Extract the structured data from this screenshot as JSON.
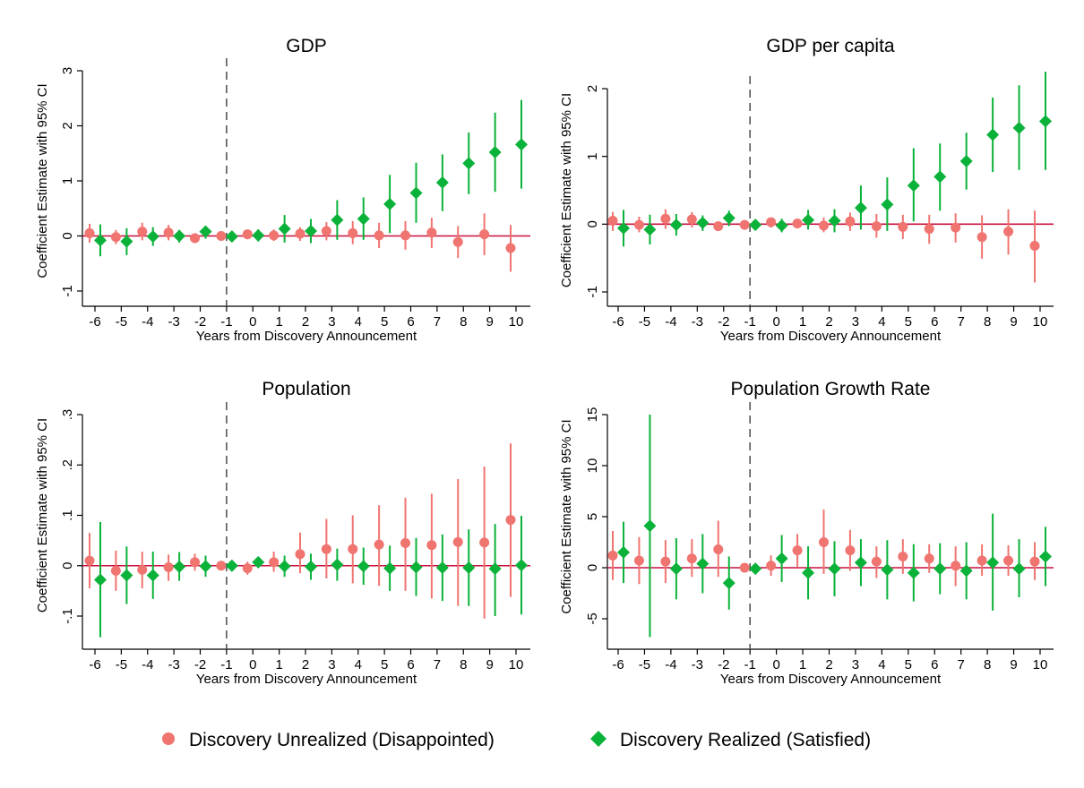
{
  "colors": {
    "unrealized": "#F07470",
    "realized": "#0BB23A",
    "zero_line": "#C8103E",
    "ref_line": "#555555",
    "axis": "#000000"
  },
  "legend": {
    "items": [
      {
        "label": "Discovery Unrealized (Disappointed)",
        "marker": "circle",
        "color": "#F07470"
      },
      {
        "label": "Discovery Realized (Satisfied)",
        "marker": "diamond",
        "color": "#0BB23A"
      }
    ]
  },
  "chart_data": [
    {
      "type": "scatter",
      "title": "GDP",
      "xlabel": "Years from Discovery Announcement",
      "ylabel": "Coefficient Estimate with 95% CI",
      "x_ticks": [
        -6,
        -5,
        -4,
        -3,
        -2,
        -1,
        0,
        1,
        2,
        3,
        4,
        5,
        6,
        7,
        8,
        9,
        10
      ],
      "y_ticks": [
        -1,
        0,
        1,
        2,
        3
      ],
      "y_tick_labels": [
        "-1",
        "0",
        "1",
        "2",
        "3"
      ],
      "ylim": [
        -1.25,
        3.0
      ],
      "reference_x": -1,
      "zero_line": 0,
      "series": [
        {
          "name": "Discovery Unrealized (Disappointed)",
          "marker": "circle",
          "x": [
            -6,
            -5,
            -4,
            -3,
            -2,
            -1,
            0,
            1,
            2,
            3,
            4,
            5,
            6,
            7,
            8,
            9,
            10
          ],
          "y": [
            0.05,
            -0.02,
            0.08,
            0.06,
            -0.04,
            0,
            0.03,
            0.01,
            0.04,
            0.09,
            0.05,
            0.01,
            0.01,
            0.06,
            -0.11,
            0.03,
            -0.22
          ],
          "ci_low": [
            -0.12,
            -0.15,
            -0.08,
            -0.08,
            -0.12,
            0,
            -0.06,
            -0.09,
            -0.09,
            -0.08,
            -0.15,
            -0.22,
            -0.25,
            -0.22,
            -0.4,
            -0.35,
            -0.65
          ],
          "ci_high": [
            0.22,
            0.11,
            0.24,
            0.2,
            0.05,
            0,
            0.1,
            0.12,
            0.16,
            0.25,
            0.27,
            0.24,
            0.27,
            0.33,
            0.18,
            0.41,
            0.2
          ]
        },
        {
          "name": "Discovery Realized (Satisfied)",
          "marker": "diamond",
          "x": [
            -6,
            -5,
            -4,
            -3,
            -2,
            -1,
            0,
            1,
            2,
            3,
            4,
            5,
            6,
            7,
            8,
            9,
            10
          ],
          "y": [
            -0.08,
            -0.1,
            -0.01,
            0.0,
            0.08,
            -0.01,
            0.01,
            0.13,
            0.09,
            0.29,
            0.31,
            0.58,
            0.78,
            0.97,
            1.32,
            1.52,
            1.66
          ],
          "ci_low": [
            -0.37,
            -0.35,
            -0.18,
            -0.12,
            -0.05,
            -0.08,
            -0.1,
            -0.12,
            -0.13,
            -0.07,
            -0.07,
            0.05,
            0.24,
            0.45,
            0.76,
            0.8,
            0.86
          ],
          "ci_high": [
            0.21,
            0.14,
            0.16,
            0.11,
            0.18,
            0.06,
            0.12,
            0.38,
            0.31,
            0.65,
            0.7,
            1.11,
            1.33,
            1.48,
            1.88,
            2.24,
            2.47
          ]
        }
      ]
    },
    {
      "type": "scatter",
      "title": "GDP per capita",
      "xlabel": "Years from Discovery Announcement",
      "ylabel": "Coefficient Estimate with 95% CI",
      "x_ticks": [
        -6,
        -5,
        -4,
        -3,
        -2,
        -1,
        0,
        1,
        2,
        3,
        4,
        5,
        6,
        7,
        8,
        9,
        10
      ],
      "y_ticks": [
        -1,
        0,
        1,
        2
      ],
      "y_tick_labels": [
        "-1",
        "0",
        "1",
        "2"
      ],
      "ylim": [
        -1.2,
        2.3
      ],
      "reference_x": -1,
      "zero_line": 0,
      "series": [
        {
          "name": "Discovery Unrealized (Disappointed)",
          "marker": "circle",
          "x": [
            -6,
            -5,
            -4,
            -3,
            -2,
            -1,
            0,
            1,
            2,
            3,
            4,
            5,
            6,
            7,
            8,
            9,
            10
          ],
          "y": [
            0.05,
            -0.01,
            0.08,
            0.07,
            -0.03,
            -0.01,
            0.03,
            0.01,
            -0.02,
            0.04,
            -0.03,
            -0.04,
            -0.07,
            -0.05,
            -0.19,
            -0.11,
            -0.32
          ],
          "ci_low": [
            -0.1,
            -0.12,
            -0.07,
            -0.05,
            -0.1,
            -0.05,
            -0.05,
            -0.06,
            -0.12,
            -0.1,
            -0.2,
            -0.22,
            -0.29,
            -0.27,
            -0.51,
            -0.45,
            -0.86
          ],
          "ci_high": [
            0.18,
            0.11,
            0.22,
            0.18,
            0.04,
            0.03,
            0.08,
            0.08,
            0.1,
            0.17,
            0.15,
            0.14,
            0.14,
            0.16,
            0.13,
            0.22,
            0.2
          ]
        },
        {
          "name": "Discovery Realized (Satisfied)",
          "marker": "diamond",
          "x": [
            -6,
            -5,
            -4,
            -3,
            -2,
            -1,
            0,
            1,
            2,
            3,
            4,
            5,
            6,
            7,
            8,
            9,
            10
          ],
          "y": [
            -0.06,
            -0.08,
            -0.01,
            0.02,
            0.09,
            -0.01,
            -0.02,
            0.06,
            0.05,
            0.24,
            0.29,
            0.57,
            0.7,
            0.93,
            1.32,
            1.42,
            1.52
          ],
          "ci_low": [
            -0.33,
            -0.3,
            -0.17,
            -0.1,
            -0.03,
            -0.06,
            -0.12,
            -0.08,
            -0.12,
            -0.08,
            -0.1,
            0.04,
            0.2,
            0.51,
            0.77,
            0.8,
            0.8
          ],
          "ci_high": [
            0.21,
            0.14,
            0.15,
            0.13,
            0.2,
            0.05,
            0.08,
            0.21,
            0.22,
            0.57,
            0.69,
            1.12,
            1.19,
            1.35,
            1.87,
            2.05,
            2.25
          ]
        }
      ]
    },
    {
      "type": "scatter",
      "title": "Population",
      "xlabel": "Years from Discovery Announcement",
      "ylabel": "Coefficient Estimate with 95% CI",
      "x_ticks": [
        -6,
        -5,
        -4,
        -3,
        -2,
        -1,
        0,
        1,
        2,
        3,
        4,
        5,
        6,
        7,
        8,
        9,
        10
      ],
      "y_ticks": [
        -0.1,
        0,
        0.1,
        0.2,
        0.3
      ],
      "y_tick_labels": [
        "-.1",
        "0",
        ".1",
        ".2",
        ".3"
      ],
      "ylim": [
        -0.16,
        0.3
      ],
      "reference_x": -1,
      "zero_line": 0,
      "series": [
        {
          "name": "Discovery Unrealized (Disappointed)",
          "marker": "circle",
          "x": [
            -6,
            -5,
            -4,
            -3,
            -2,
            -1,
            0,
            1,
            2,
            3,
            4,
            5,
            6,
            7,
            8,
            9,
            10
          ],
          "y": [
            0.01,
            -0.01,
            -0.008,
            -0.003,
            0.007,
            0,
            -0.005,
            0.007,
            0.023,
            0.033,
            0.033,
            0.042,
            0.045,
            0.041,
            0.047,
            0.046,
            0.091
          ],
          "ci_low": [
            -0.045,
            -0.05,
            -0.045,
            -0.03,
            -0.01,
            0,
            -0.018,
            -0.012,
            -0.015,
            -0.025,
            -0.035,
            -0.04,
            -0.05,
            -0.065,
            -0.08,
            -0.105,
            -0.062
          ],
          "ci_high": [
            0.065,
            0.03,
            0.028,
            0.022,
            0.024,
            0,
            0.008,
            0.028,
            0.066,
            0.093,
            0.1,
            0.12,
            0.135,
            0.143,
            0.172,
            0.197,
            0.243
          ]
        },
        {
          "name": "Discovery Realized (Satisfied)",
          "marker": "diamond",
          "x": [
            -6,
            -5,
            -4,
            -3,
            -2,
            -1,
            0,
            1,
            2,
            3,
            4,
            5,
            6,
            7,
            8,
            9,
            10
          ],
          "y": [
            -0.028,
            -0.019,
            -0.019,
            -0.002,
            -0.001,
            0,
            0.007,
            -0.001,
            -0.002,
            0.002,
            -0.001,
            -0.005,
            -0.003,
            -0.004,
            -0.004,
            -0.006,
            0.001
          ],
          "ci_low": [
            -0.142,
            -0.076,
            -0.066,
            -0.03,
            -0.022,
            -0.01,
            -0.003,
            -0.022,
            -0.028,
            -0.03,
            -0.038,
            -0.05,
            -0.06,
            -0.07,
            -0.08,
            -0.1,
            -0.097
          ],
          "ci_high": [
            0.087,
            0.038,
            0.028,
            0.027,
            0.02,
            0.01,
            0.017,
            0.02,
            0.024,
            0.034,
            0.036,
            0.04,
            0.055,
            0.062,
            0.072,
            0.083,
            0.099
          ]
        }
      ]
    },
    {
      "type": "scatter",
      "title": "Population Growth Rate",
      "xlabel": "Years from Discovery Announcement",
      "ylabel": "Coefficient Estimate with 95% CI",
      "x_ticks": [
        -6,
        -5,
        -4,
        -3,
        -2,
        -1,
        0,
        1,
        2,
        3,
        4,
        5,
        6,
        7,
        8,
        9,
        10
      ],
      "y_ticks": [
        -5,
        0,
        5,
        10,
        15
      ],
      "y_tick_labels": [
        "-5",
        "0",
        "5",
        "10",
        "15"
      ],
      "ylim": [
        -8,
        15
      ],
      "reference_x": -1,
      "zero_line": 0,
      "series": [
        {
          "name": "Discovery Unrealized (Disappointed)",
          "marker": "circle",
          "x": [
            -6,
            -5,
            -4,
            -3,
            -2,
            -1,
            0,
            1,
            2,
            3,
            4,
            5,
            6,
            7,
            8,
            9,
            10
          ],
          "y": [
            1.2,
            0.7,
            0.6,
            0.9,
            1.8,
            0,
            0.2,
            1.7,
            2.5,
            1.7,
            0.6,
            1.1,
            0.9,
            0.2,
            0.7,
            0.7,
            0.6
          ],
          "ci_low": [
            -1.2,
            -1.6,
            -1.5,
            -0.9,
            -0.9,
            -0.2,
            -0.8,
            0.1,
            -0.6,
            -0.3,
            -1.0,
            -0.6,
            -0.5,
            -1.8,
            -0.8,
            -0.8,
            -1.2
          ],
          "ci_high": [
            3.6,
            3.0,
            2.7,
            2.8,
            4.6,
            0.2,
            1.2,
            3.3,
            5.7,
            3.7,
            2.1,
            2.8,
            2.3,
            2.1,
            2.3,
            2.2,
            2.5
          ]
        },
        {
          "name": "Discovery Realized (Satisfied)",
          "marker": "diamond",
          "x": [
            -6,
            -5,
            -4,
            -3,
            -2,
            -1,
            0,
            1,
            2,
            3,
            4,
            5,
            6,
            7,
            8,
            9,
            10
          ],
          "y": [
            1.5,
            4.1,
            -0.1,
            0.4,
            -1.5,
            -0.1,
            0.9,
            -0.5,
            -0.1,
            0.5,
            -0.2,
            -0.5,
            -0.1,
            -0.3,
            0.5,
            -0.1,
            1.1
          ],
          "ci_low": [
            -1.5,
            -6.8,
            -3.1,
            -2.5,
            -4.1,
            -0.4,
            -1.4,
            -3.1,
            -2.8,
            -1.8,
            -3.1,
            -3.3,
            -2.6,
            -3.1,
            -4.2,
            -2.9,
            -1.8
          ],
          "ci_high": [
            4.5,
            15.0,
            2.9,
            3.3,
            1.1,
            0.2,
            3.2,
            2.1,
            2.6,
            2.8,
            2.7,
            2.3,
            2.4,
            2.5,
            5.3,
            2.8,
            4.0
          ]
        }
      ]
    }
  ]
}
